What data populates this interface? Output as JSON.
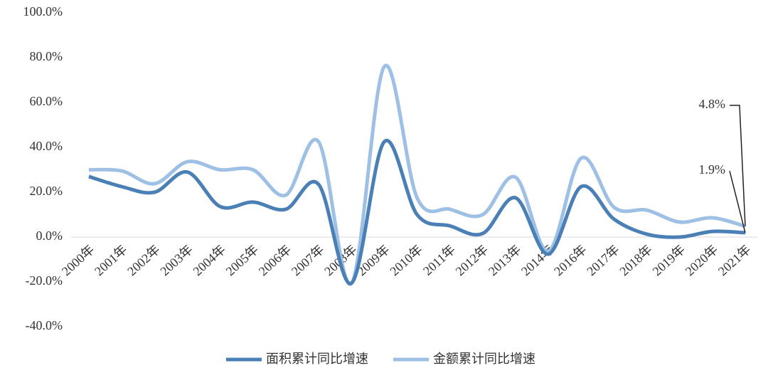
{
  "chart_data": {
    "type": "line",
    "categories": [
      "2000年",
      "2001年",
      "2002年",
      "2003年",
      "2004年",
      "2005年",
      "2006年",
      "2007年",
      "2008年",
      "2009年",
      "2010年",
      "2011年",
      "2012年",
      "2013年",
      "2014年",
      "2016年",
      "2017年",
      "2018年",
      "2019年",
      "2020年",
      "2021年"
    ],
    "series": [
      {
        "name": "面积累计同比增速",
        "color": "#4a80b6",
        "values": [
          27,
          22.5,
          20,
          29,
          13.6,
          15.6,
          12.4,
          23.5,
          -20.6,
          42.5,
          10,
          5,
          1.6,
          17.5,
          -7.6,
          22.5,
          8,
          1.3,
          0,
          2.5,
          1.9
        ],
        "value_labels": [
          null,
          null,
          null,
          null,
          null,
          null,
          null,
          null,
          null,
          null,
          null,
          null,
          null,
          null,
          null,
          null,
          null,
          null,
          null,
          null,
          "1.9%"
        ]
      },
      {
        "name": "金额累计同比增速",
        "color": "#9dc0e4",
        "values": [
          30,
          29.5,
          23.8,
          33.6,
          30,
          30,
          18.7,
          42.5,
          -20.6,
          76,
          17.5,
          12.4,
          10,
          26.7,
          -6.3,
          35.2,
          13.3,
          12,
          6.7,
          8.6,
          4.8
        ],
        "value_labels": [
          null,
          null,
          null,
          null,
          null,
          null,
          null,
          null,
          null,
          null,
          null,
          null,
          null,
          null,
          null,
          null,
          null,
          null,
          null,
          null,
          "4.8%"
        ]
      }
    ],
    "ylim": [
      -40,
      100
    ],
    "yticks": [
      {
        "value": -40,
        "label": "-40.0%"
      },
      {
        "value": -20,
        "label": "-20.0%"
      },
      {
        "value": 0,
        "label": "0.0%"
      },
      {
        "value": 20,
        "label": "20.0%"
      },
      {
        "value": 40,
        "label": "40.0%"
      },
      {
        "value": 60,
        "label": "60.0%"
      },
      {
        "value": 80,
        "label": "80.0%"
      },
      {
        "value": 100,
        "label": "100.0%"
      }
    ],
    "legend": "bottom"
  }
}
